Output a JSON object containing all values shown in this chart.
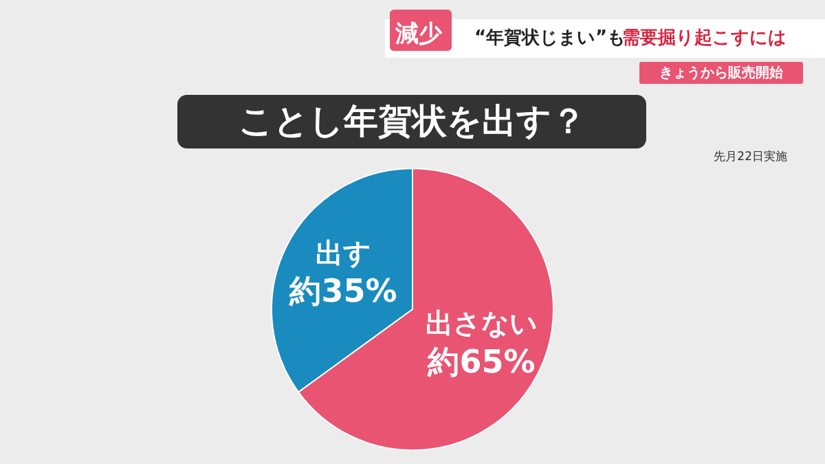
{
  "chart_data": {
    "type": "pie",
    "title": "ことし年賀状を出す？",
    "categories": [
      "出す",
      "出さない"
    ],
    "values": [
      35,
      65
    ],
    "value_labels": [
      "約35%",
      "約65%"
    ],
    "colors": [
      "#1a8bbf",
      "#e85472"
    ],
    "annotations": [
      "減少",
      "“年賀状じまい”も",
      "需要掘り起こすには",
      "きょうから販売開始",
      "先月22日実施"
    ]
  }
}
